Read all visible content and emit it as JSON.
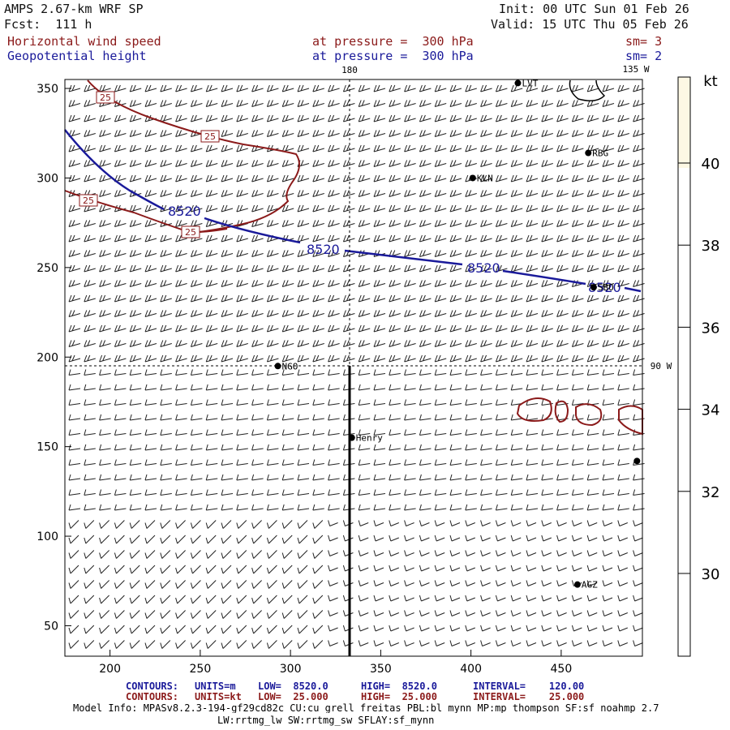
{
  "header": {
    "title": "AMPS 2.67-km WRF SP",
    "fcst": "Fcst:  111 h",
    "init": "Init: 00 UTC Sun 01 Feb 26",
    "valid": "Valid: 15 UTC Thu 05 Feb 26",
    "field1": {
      "name": "Horizontal wind speed",
      "level": "at pressure =  300 hPa",
      "sm": "sm= 3"
    },
    "field2": {
      "name": "Geopotential height",
      "level": "at pressure =  300 hPa",
      "sm": "sm= 2"
    }
  },
  "map": {
    "x_ticks": [
      200,
      250,
      300,
      350,
      400,
      450
    ],
    "y_ticks": [
      50,
      100,
      150,
      200,
      250,
      300,
      350
    ],
    "x_range": [
      175,
      495
    ],
    "y_range": [
      33,
      355
    ],
    "meridian_labels": [
      "180",
      "135 W",
      "90 W"
    ],
    "height_contour_label": "8520",
    "speed_contour_label": "25",
    "stations": [
      {
        "name": "LVT",
        "x": 426,
        "y": 353
      },
      {
        "name": "RBG",
        "x": 465,
        "y": 314
      },
      {
        "name": "KLN",
        "x": 401,
        "y": 300
      },
      {
        "name": "SBO",
        "x": 468,
        "y": 239
      },
      {
        "name": "NGO",
        "x": 293,
        "y": 195
      },
      {
        "name": "Henry",
        "x": 334,
        "y": 155
      },
      {
        "name": "",
        "x": 492,
        "y": 142
      },
      {
        "name": "AGZ",
        "x": 459,
        "y": 73
      }
    ],
    "colors": {
      "height": "#1a1a9a",
      "speed": "#8b1a1a",
      "barb": "#222222"
    }
  },
  "colorbar": {
    "unit": "kt",
    "ticks": [
      30,
      32,
      34,
      36,
      38,
      40
    ],
    "fill_color": "#fdf8e4"
  },
  "footer": {
    "line1": {
      "contours": "CONTOURS:",
      "units": "UNITS=m",
      "low": "LOW=  8520.0",
      "high": "HIGH=  8520.0",
      "interval": "INTERVAL=    120.00"
    },
    "line2": {
      "contours": "CONTOURS:",
      "units": "UNITS=kt",
      "low": "LOW=  25.000",
      "high": "HIGH=  25.000",
      "interval": "INTERVAL=    25.000"
    },
    "info1": "Model Info: MPASv8.2.3-194-gf29cd82c CU:cu_grell_freitas PBL:bl_mynn MP:mp_thompson SF:sf_noahmp 2.7",
    "info2": "LW:rrtmg_lw SW:rrtmg_sw SFLAY:sf_mynn"
  }
}
